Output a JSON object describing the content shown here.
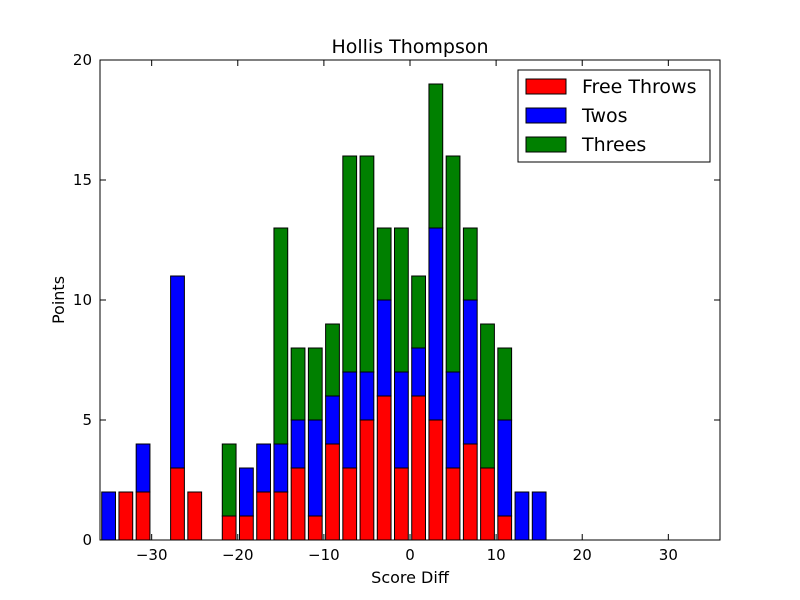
{
  "chart_data": {
    "type": "bar",
    "stacked": true,
    "title": "Hollis Thompson",
    "xlabel": "Score Diff",
    "ylabel": "Points",
    "xlim": [
      -36,
      36
    ],
    "ylim": [
      0,
      20
    ],
    "xticks": [
      -30,
      -20,
      -10,
      0,
      10,
      20,
      30
    ],
    "xtick_labels": [
      "−30",
      "−20",
      "−10",
      "0",
      "10",
      "20",
      "30"
    ],
    "yticks": [
      0,
      5,
      10,
      15,
      20
    ],
    "ytick_labels": [
      "0",
      "5",
      "10",
      "15",
      "20"
    ],
    "legend_position": "top-right",
    "bar_width": 1.6,
    "x": [
      -35,
      -33,
      -31,
      -29,
      -27,
      -25,
      -23,
      -21,
      -19,
      -17,
      -15,
      -13,
      -11,
      -9,
      -7,
      -5,
      -3,
      -1,
      1,
      3,
      5,
      7,
      9,
      11,
      13,
      15,
      17,
      19,
      21,
      23,
      25,
      27,
      29,
      31,
      33,
      35
    ],
    "series": [
      {
        "name": "Free Throws",
        "color": "#ff0000",
        "values": [
          0,
          2,
          2,
          0,
          3,
          2,
          0,
          1,
          1,
          2,
          2,
          3,
          1,
          4,
          3,
          5,
          6,
          3,
          6,
          5,
          3,
          4,
          3,
          1,
          0,
          0,
          0,
          0,
          0,
          0,
          0,
          0,
          0,
          0,
          0,
          0
        ]
      },
      {
        "name": "Twos",
        "color": "#0000ff",
        "values": [
          2,
          0,
          2,
          0,
          8,
          0,
          0,
          0,
          2,
          2,
          2,
          2,
          4,
          2,
          4,
          2,
          4,
          4,
          2,
          8,
          4,
          6,
          0,
          4,
          2,
          2,
          0,
          0,
          0,
          0,
          0,
          0,
          0,
          0,
          0,
          0
        ]
      },
      {
        "name": "Threes",
        "color": "#008000",
        "values": [
          0,
          0,
          0,
          0,
          0,
          0,
          0,
          3,
          0,
          0,
          9,
          3,
          3,
          3,
          9,
          9,
          3,
          6,
          3,
          6,
          9,
          3,
          6,
          3,
          0,
          0,
          0,
          0,
          0,
          0,
          0,
          0,
          0,
          0,
          0,
          0
        ]
      }
    ]
  }
}
